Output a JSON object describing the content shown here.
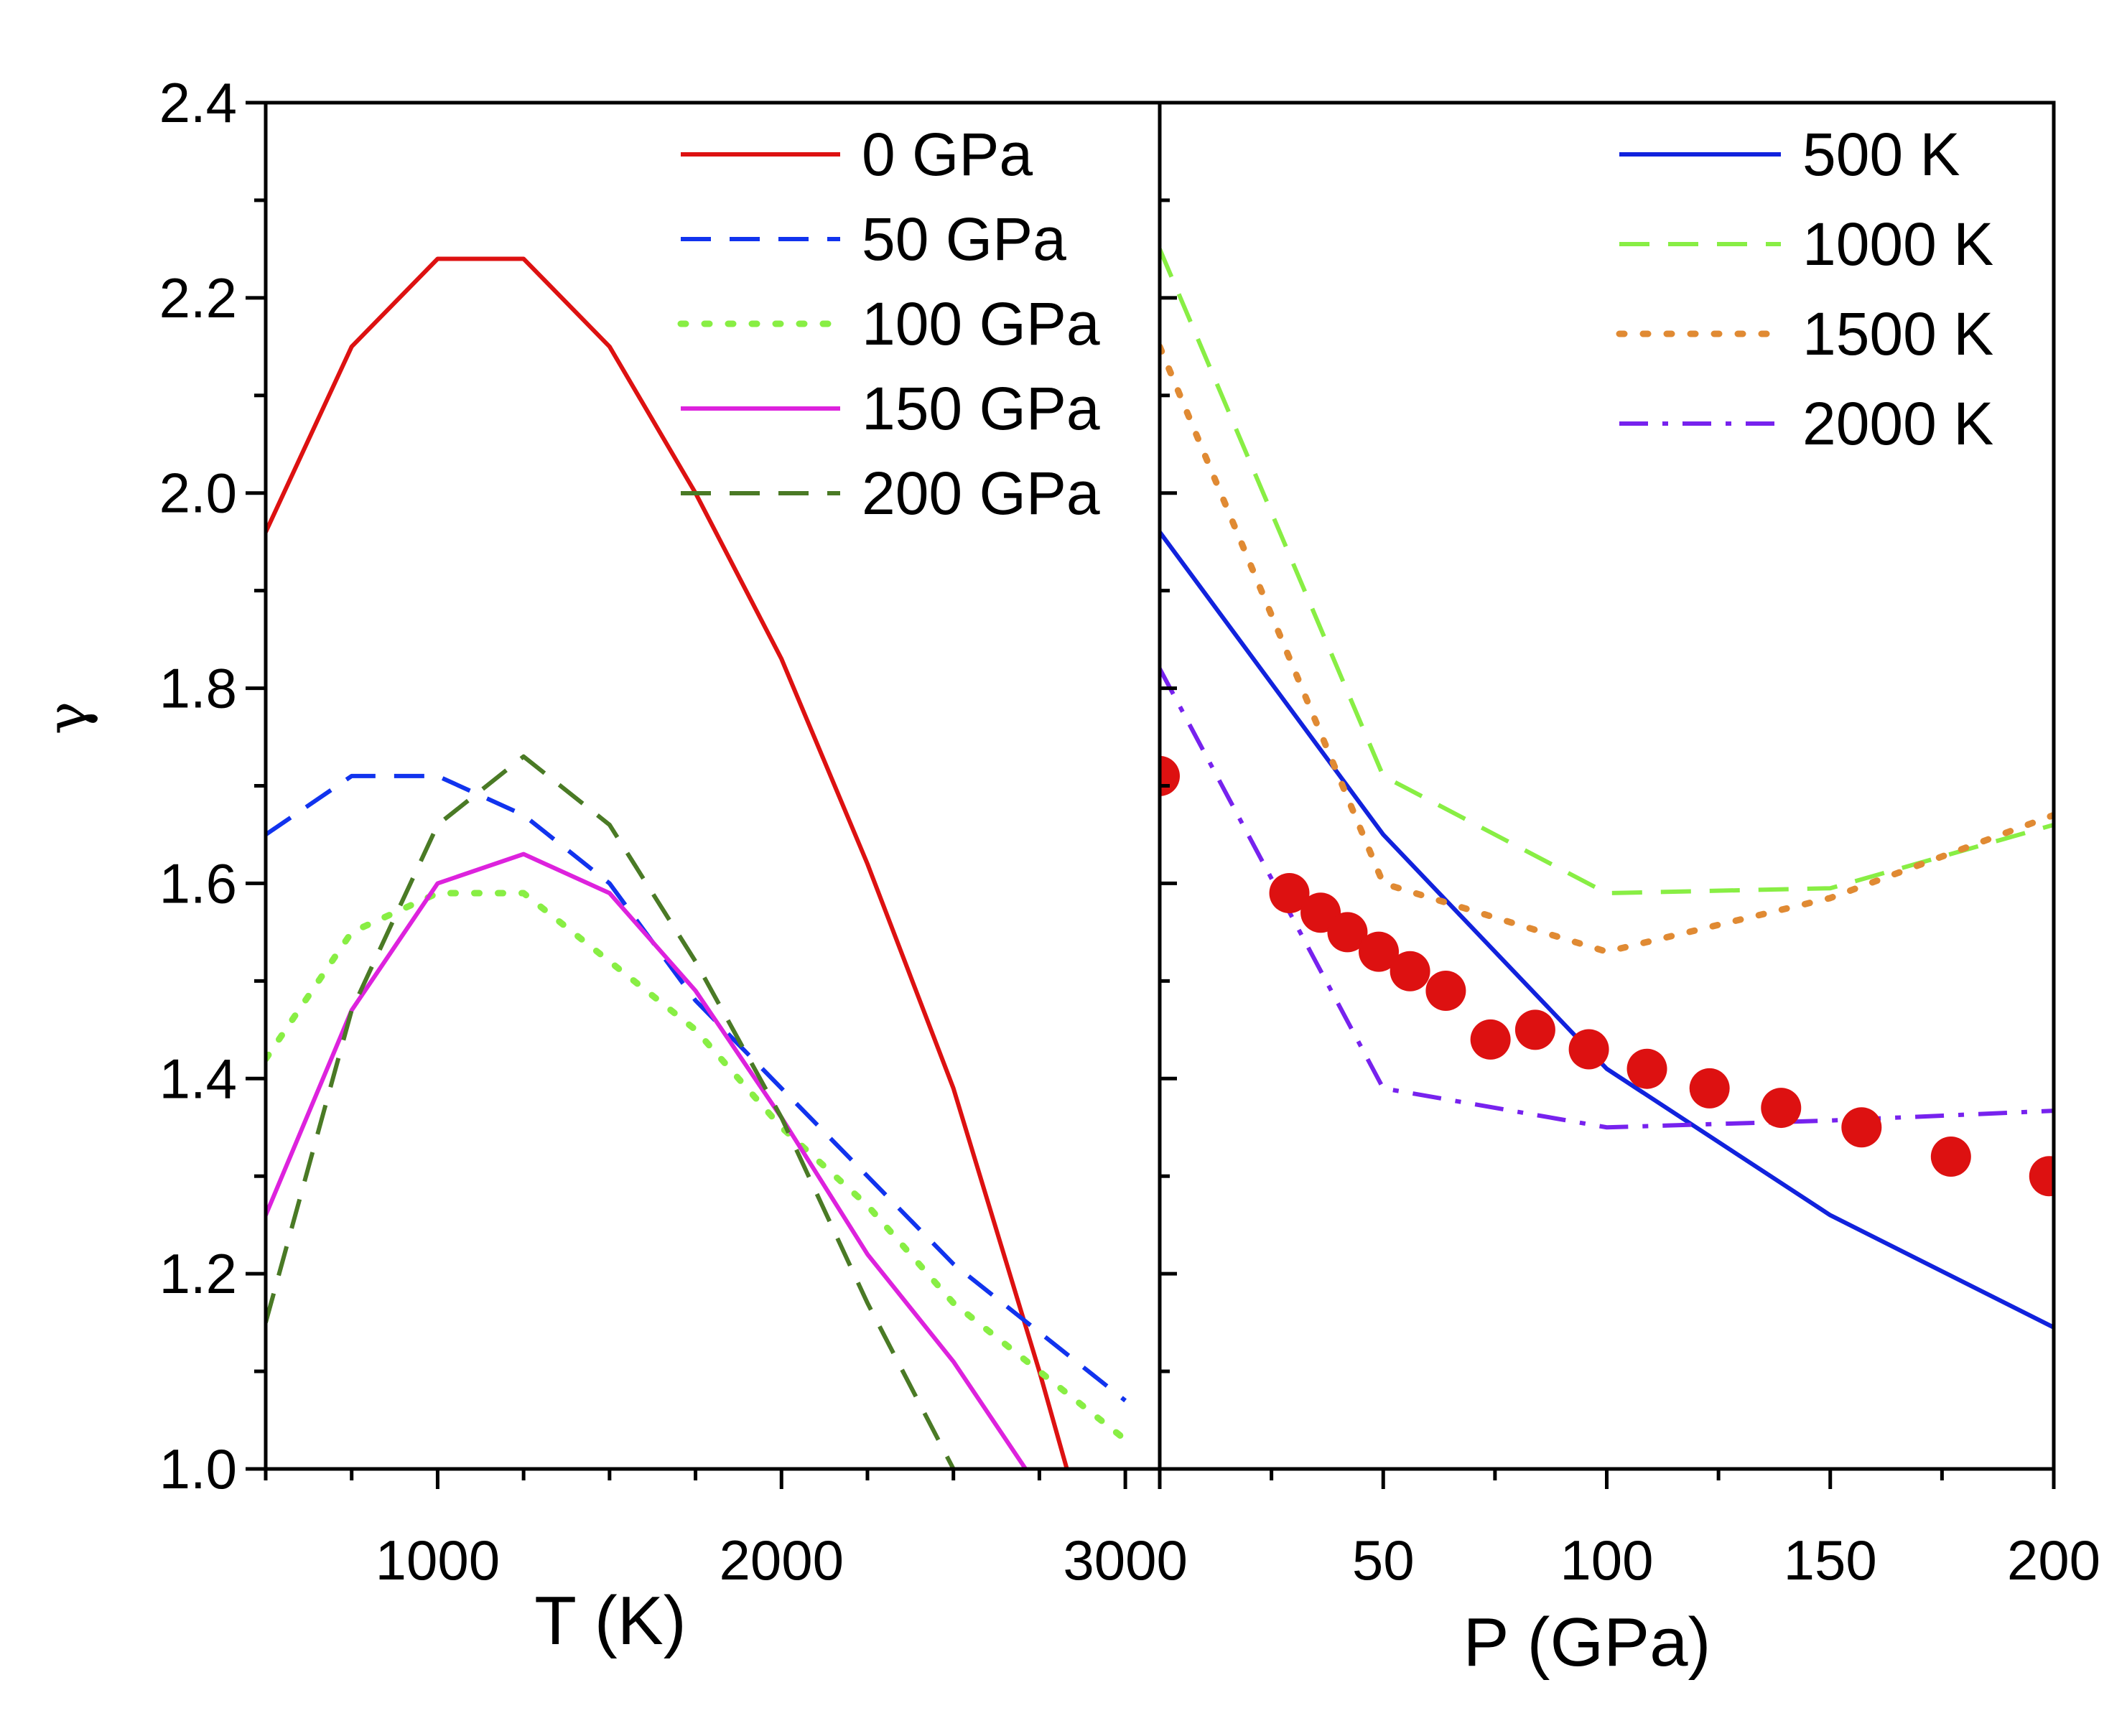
{
  "chart_data": [
    {
      "type": "line",
      "panel": "left",
      "xlabel": "T (K)",
      "ylabel": "γ",
      "xlim": [
        500,
        3100
      ],
      "ylim": [
        1.0,
        2.4
      ],
      "xticks": [
        1000,
        2000,
        3000
      ],
      "yticks": [
        1.0,
        1.2,
        1.4,
        1.6,
        1.8,
        2.0,
        2.2,
        2.4
      ],
      "legend_position": "top-right",
      "series": [
        {
          "name": "0 GPa",
          "color": "#dd1111",
          "dash": "solid",
          "x": [
            500,
            750,
            1000,
            1250,
            1500,
            1750,
            2000,
            2250,
            2500,
            2750,
            2830
          ],
          "y": [
            1.96,
            2.15,
            2.24,
            2.24,
            2.15,
            2.0,
            1.83,
            1.62,
            1.39,
            1.1,
            1.0
          ]
        },
        {
          "name": "50 GPa",
          "color": "#1133ee",
          "dash": "dash",
          "x": [
            500,
            750,
            1000,
            1250,
            1500,
            1750,
            2000,
            2250,
            2500,
            2750,
            3000
          ],
          "y": [
            1.65,
            1.71,
            1.71,
            1.67,
            1.6,
            1.48,
            1.39,
            1.3,
            1.21,
            1.14,
            1.07
          ]
        },
        {
          "name": "100 GPa",
          "color": "#88ee44",
          "dash": "dot",
          "x": [
            500,
            750,
            1000,
            1250,
            1500,
            1750,
            2000,
            2250,
            2500,
            2750,
            3000
          ],
          "y": [
            1.42,
            1.55,
            1.59,
            1.59,
            1.52,
            1.45,
            1.35,
            1.27,
            1.17,
            1.1,
            1.03
          ]
        },
        {
          "name": "150 GPa",
          "color": "#dd22dd",
          "dash": "solid",
          "x": [
            500,
            750,
            1000,
            1250,
            1500,
            1750,
            2000,
            2250,
            2500,
            2710
          ],
          "y": [
            1.26,
            1.47,
            1.6,
            1.63,
            1.59,
            1.49,
            1.36,
            1.22,
            1.11,
            1.0
          ]
        },
        {
          "name": "200 GPa",
          "color": "#4a7a25",
          "dash": "dash",
          "x": [
            500,
            750,
            1000,
            1250,
            1500,
            1750,
            2000,
            2250,
            2500
          ],
          "y": [
            1.15,
            1.47,
            1.66,
            1.73,
            1.66,
            1.52,
            1.36,
            1.17,
            1.0
          ]
        }
      ]
    },
    {
      "type": "line",
      "panel": "right",
      "xlabel": "P (GPa)",
      "ylim": [
        1.0,
        2.4
      ],
      "xlim": [
        0,
        200
      ],
      "xticks": [
        50,
        100,
        150,
        200
      ],
      "legend_position": "top-right",
      "series": [
        {
          "name": "500 K",
          "color": "#1122dd",
          "dash": "solid",
          "x": [
            0,
            50,
            100,
            150,
            200
          ],
          "y": [
            1.96,
            1.65,
            1.41,
            1.26,
            1.145
          ]
        },
        {
          "name": "1000 K",
          "color": "#88ee44",
          "dash": "dash",
          "x": [
            0,
            50,
            100,
            150,
            200
          ],
          "y": [
            2.25,
            1.71,
            1.59,
            1.595,
            1.66
          ]
        },
        {
          "name": "1500 K",
          "color": "#e08a33",
          "dash": "dot",
          "x": [
            0,
            50,
            100,
            150,
            200
          ],
          "y": [
            2.15,
            1.6,
            1.53,
            1.585,
            1.67
          ]
        },
        {
          "name": "2000 K",
          "color": "#7722ee",
          "dash": "dashdot",
          "x": [
            0,
            50,
            100,
            150,
            200
          ],
          "y": [
            1.82,
            1.39,
            1.35,
            1.357,
            1.367
          ]
        },
        {
          "name": "",
          "type": "scatter",
          "color": "#dd1111",
          "x": [
            0,
            29,
            36,
            42,
            49,
            56,
            64,
            74,
            84,
            96,
            109,
            123,
            139,
            157,
            177,
            199
          ],
          "y": [
            1.71,
            1.59,
            1.57,
            1.55,
            1.53,
            1.51,
            1.49,
            1.44,
            1.45,
            1.43,
            1.41,
            1.39,
            1.37,
            1.35,
            1.32,
            1.3
          ]
        }
      ]
    }
  ]
}
